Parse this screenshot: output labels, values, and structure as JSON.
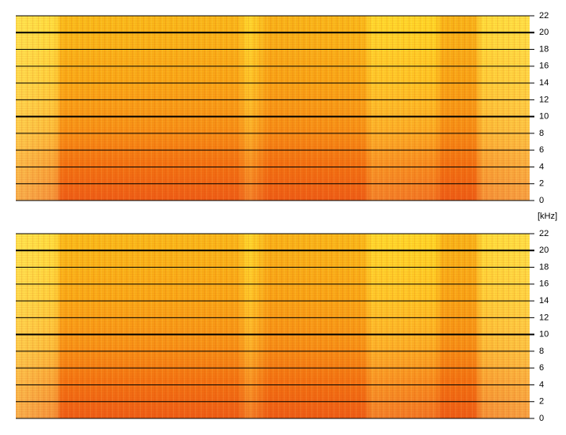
{
  "chart_data": [
    {
      "type": "spectrogram",
      "ylabel": "[kHz]",
      "ylim": [
        0,
        22
      ],
      "yticks": [
        0,
        2,
        4,
        6,
        8,
        10,
        12,
        14,
        16,
        18,
        20,
        22
      ]
    },
    {
      "type": "spectrogram",
      "ylim": [
        0,
        22
      ],
      "yticks": [
        0,
        2,
        4,
        6,
        8,
        10,
        12,
        14,
        16,
        18,
        20,
        22
      ]
    }
  ]
}
